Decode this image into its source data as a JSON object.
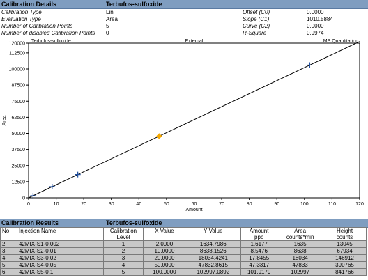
{
  "details": {
    "header_label": "Calibration Details",
    "compound": "Terbufos-sulfoxide",
    "rows": [
      {
        "label": "Calibration Type",
        "value": "Lin",
        "param": "Offset (C0)",
        "param_value": "0.0000"
      },
      {
        "label": "Evaluation Type",
        "value": "Area",
        "param": "Slope (C1)",
        "param_value": "1010.5884"
      },
      {
        "label": "Number of Calibration Points",
        "value": "5",
        "param": "Curve (C2)",
        "param_value": "0.0000"
      },
      {
        "label": "Number of disabled Calibration Points",
        "value": "0",
        "param": "R-Square",
        "param_value": "0.9974"
      }
    ]
  },
  "chart_data": {
    "type": "scatter",
    "title_left": "Terbufos-sulfoxide",
    "title_center": "External",
    "title_right": "MS Quantitation",
    "xlabel": "Amount",
    "ylabel": "Area",
    "xlim": [
      0,
      120
    ],
    "ylim": [
      0,
      120000
    ],
    "xticks": [
      0,
      10,
      20,
      30,
      40,
      50,
      60,
      70,
      80,
      90,
      100,
      110,
      120
    ],
    "yticks": [
      0,
      12500,
      25000,
      37500,
      50000,
      62500,
      75000,
      87500,
      100000,
      112500,
      120000
    ],
    "fit_line": {
      "slope": 1010.5884,
      "offset": 0
    },
    "points": [
      {
        "x": 1.6177,
        "y": 1635,
        "marker": "plus",
        "color": "#1f4fa0"
      },
      {
        "x": 8.5476,
        "y": 8638,
        "marker": "plus",
        "color": "#1f4fa0"
      },
      {
        "x": 17.8455,
        "y": 18034,
        "marker": "plus",
        "color": "#1f4fa0"
      },
      {
        "x": 47.3317,
        "y": 47833,
        "marker": "diamond",
        "color": "#f5a800"
      },
      {
        "x": 101.9179,
        "y": 102997,
        "marker": "plus",
        "color": "#1f4fa0"
      }
    ]
  },
  "results": {
    "header_label": "Calibration Results",
    "compound": "Terbufos-sulfoxide",
    "columns": [
      "No.",
      "Injection Name",
      "Calibration\nLevel",
      "X Value",
      "Y Value",
      "Amount\nppb",
      "Area\ncounts*min",
      "Height\ncounts"
    ],
    "rows": [
      [
        "2",
        "42MIX-S1-0.002",
        "1",
        "2.0000",
        "1634.7986",
        "1.6177",
        "1635",
        "13045"
      ],
      [
        "3",
        "42MIX-S2-0.01",
        "2",
        "10.0000",
        "8638.1526",
        "8.5476",
        "8638",
        "67934"
      ],
      [
        "4",
        "42MIX-S3-0.02",
        "3",
        "20.0000",
        "18034.4241",
        "17.8455",
        "18034",
        "146912"
      ],
      [
        "5",
        "42MIX-S4-0.05",
        "4",
        "50.0000",
        "47832.8615",
        "47.3317",
        "47833",
        "390765"
      ],
      [
        "6",
        "42MIX-S5-0.1",
        "5",
        "100.0000",
        "102997.0892",
        "101.9179",
        "102997",
        "841766"
      ]
    ]
  }
}
